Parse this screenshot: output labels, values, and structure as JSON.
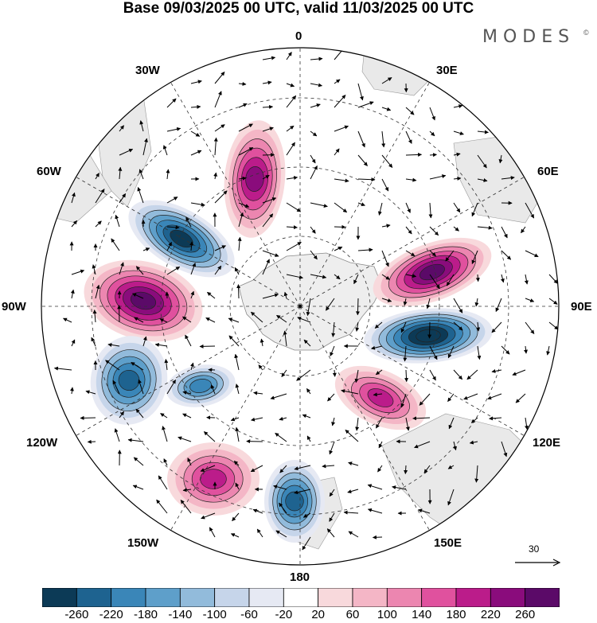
{
  "title": "Base 09/03/2025 00 UTC, valid 11/03/2025 00 UTC",
  "brand": "MODES",
  "brand_mark": "©",
  "longitude_labels": {
    "lon_0": "0",
    "lon_30e": "30E",
    "lon_60e": "60E",
    "lon_90e": "90E",
    "lon_120e": "120E",
    "lon_150e": "150E",
    "lon_180": "180",
    "lon_150w": "150W",
    "lon_120w": "120W",
    "lon_90w": "90W",
    "lon_60w": "60W",
    "lon_30w": "30W"
  },
  "vector_scale_label": "30",
  "colorbar": {
    "tick_labels": [
      "-260",
      "-220",
      "-180",
      "-140",
      "-100",
      "-60",
      "-20",
      "20",
      "60",
      "100",
      "140",
      "180",
      "220",
      "260"
    ],
    "colors": [
      "#0c3a56",
      "#1e6390",
      "#3a86b8",
      "#5e9fca",
      "#92bbdb",
      "#c6d5ea",
      "#e6e9f3",
      "#ffffff",
      "#f8d9dc",
      "#f4b6c6",
      "#ec86b0",
      "#e0519e",
      "#bb1c8a",
      "#8a0c7c",
      "#5b0a68"
    ]
  },
  "anomaly_centers": [
    {
      "name": "center-90e-negative",
      "sign": "negative",
      "value": -260
    },
    {
      "name": "center-70e-positive",
      "sign": "positive",
      "value": 240
    },
    {
      "name": "center-75w-negative",
      "sign": "negative",
      "value": -240
    },
    {
      "name": "center-90w-positive",
      "sign": "positive",
      "value": 230
    },
    {
      "name": "center-10w-positive",
      "sign": "positive",
      "value": 180
    },
    {
      "name": "center-110w-negative",
      "sign": "negative",
      "value": -180
    },
    {
      "name": "center-120w-negative",
      "sign": "negative",
      "value": -160
    },
    {
      "name": "center-150w-positive",
      "sign": "positive",
      "value": 150
    },
    {
      "name": "center-170w-negative",
      "sign": "negative",
      "value": -200
    },
    {
      "name": "center-130e-positive",
      "sign": "positive",
      "value": 150
    }
  ]
}
